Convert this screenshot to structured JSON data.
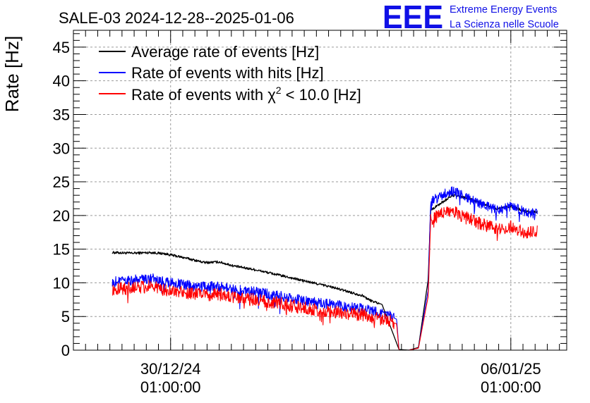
{
  "chart_data": {
    "type": "line",
    "title": "SALE-03 2024-12-28--2025-01-06",
    "ylabel": "Rate [Hz]",
    "xlabel": "",
    "ylim": [
      0,
      47.5
    ],
    "yticks": [
      0,
      5,
      10,
      15,
      20,
      25,
      30,
      35,
      40,
      45
    ],
    "xlim_days": [
      0,
      10.15
    ],
    "xticks": [
      {
        "day": 2.0,
        "line1": "30/12/24",
        "line2": "01:00:00"
      },
      {
        "day": 9.0,
        "line1": "06/01/25",
        "line2": "01:00:00"
      }
    ],
    "grid": true,
    "legend_position": "top-left",
    "legend": {
      "avg_label": "Average rate of events [Hz]",
      "hits_label": "Rate of events with hits [Hz]",
      "chi_prefix": "Rate of events with χ",
      "chi_sup": "2",
      "chi_suffix": " < 10.0 [Hz]"
    },
    "series": [
      {
        "name": "Average rate of events [Hz]",
        "color": "#000000",
        "x": [
          0.8,
          1.2,
          1.6,
          1.9,
          2.3,
          2.7,
          3.0,
          3.3,
          3.7,
          4.2,
          4.8,
          5.3,
          5.7,
          5.95,
          6.1,
          6.35,
          6.7,
          6.9,
          7.1,
          7.3,
          7.35,
          7.6,
          7.8,
          8.1,
          8.4,
          8.7,
          9.0,
          9.3,
          9.55
        ],
        "y": [
          14.5,
          14.4,
          14.5,
          14.3,
          13.7,
          13.0,
          13.1,
          12.5,
          12.0,
          11.2,
          10.2,
          9.4,
          8.6,
          8.1,
          7.4,
          6.8,
          0.1,
          0.0,
          0.4,
          10.5,
          20.8,
          22.0,
          23.0,
          22.6,
          21.8,
          21.0,
          21.4,
          20.6,
          20.5
        ]
      },
      {
        "name": "Rate of events with hits [Hz]",
        "color": "#0000ff",
        "x": [
          0.8,
          1.2,
          1.6,
          1.9,
          2.3,
          2.7,
          3.0,
          3.3,
          3.7,
          4.2,
          4.8,
          5.3,
          5.7,
          6.0,
          6.2,
          6.35,
          6.45,
          6.65,
          6.7,
          6.9,
          7.1,
          7.3,
          7.35,
          7.6,
          7.8,
          8.1,
          8.4,
          8.7,
          9.0,
          9.3,
          9.55
        ],
        "y": [
          10.2,
          10.4,
          10.7,
          10.1,
          9.7,
          9.4,
          9.5,
          9.0,
          8.7,
          8.1,
          7.3,
          6.8,
          6.4,
          6.1,
          5.7,
          5.5,
          5.3,
          4.6,
          0.0,
          0.0,
          0.3,
          9.0,
          22.0,
          23.1,
          23.7,
          22.6,
          21.7,
          20.8,
          21.4,
          20.5,
          20.3
        ]
      },
      {
        "name": "Rate of events with χ2 < 10.0 [Hz]",
        "color": "#ff0000",
        "x": [
          0.8,
          1.2,
          1.6,
          1.9,
          2.3,
          2.7,
          3.0,
          3.3,
          3.7,
          4.2,
          4.8,
          5.3,
          5.7,
          6.0,
          6.2,
          6.35,
          6.45,
          6.65,
          6.7,
          6.9,
          7.1,
          7.3,
          7.35,
          7.6,
          7.8,
          8.1,
          8.4,
          8.7,
          9.0,
          9.3,
          9.55
        ],
        "y": [
          9.1,
          9.2,
          9.5,
          8.9,
          8.5,
          8.2,
          8.3,
          7.8,
          7.5,
          7.0,
          6.2,
          5.7,
          5.4,
          5.2,
          4.8,
          4.6,
          4.5,
          3.9,
          0.0,
          0.0,
          0.3,
          8.0,
          19.2,
          20.5,
          20.6,
          19.6,
          18.7,
          18.0,
          18.4,
          17.5,
          17.6
        ]
      }
    ]
  },
  "logo": {
    "mark": "EEE",
    "line1": "Extreme Energy Events",
    "line2": "La Scienza nelle Scuole"
  }
}
